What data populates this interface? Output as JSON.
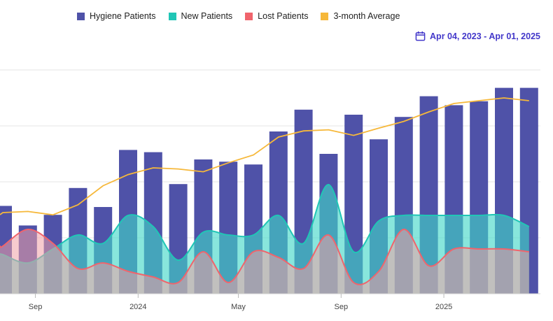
{
  "legend": [
    {
      "label": "Hygiene Patients",
      "color": "#4f52a8"
    },
    {
      "label": "New Patients",
      "color": "#20c6b6"
    },
    {
      "label": "Lost Patients",
      "color": "#f0646c"
    },
    {
      "label": "3-month Average",
      "color": "#f6b83a"
    }
  ],
  "date_range": {
    "label": "Apr 04, 2023 - Apr 01, 2025",
    "icon": "calendar-icon"
  },
  "chart_data": {
    "type": "bar",
    "title": "",
    "ylim": [
      0,
      400
    ],
    "gridlines": [
      100,
      200,
      300,
      400
    ],
    "categories": [
      "2023-07",
      "2023-08",
      "2023-09",
      "2023-10",
      "2023-11",
      "2023-12",
      "2024-01",
      "2024-02",
      "2024-03",
      "2024-04",
      "2024-05",
      "2024-06",
      "2024-07",
      "2024-08",
      "2024-09",
      "2024-10",
      "2024-11",
      "2024-12",
      "2025-01",
      "2025-02",
      "2025-03",
      "2025-04"
    ],
    "x_ticks": [
      {
        "label": "Sep",
        "index": 1.3
      },
      {
        "label": "2024",
        "index": 5.4
      },
      {
        "label": "May",
        "index": 9.4
      },
      {
        "label": "Sep",
        "index": 13.5
      },
      {
        "label": "2025",
        "index": 17.6
      }
    ],
    "series": [
      {
        "name": "Hygiene Patients",
        "type": "bar",
        "color": "#4f52a8",
        "values": [
          157,
          122,
          141,
          189,
          155,
          257,
          253,
          196,
          240,
          236,
          231,
          290,
          329,
          250,
          320,
          276,
          316,
          353,
          337,
          344,
          368,
          368
        ]
      },
      {
        "name": "New Patients",
        "type": "area",
        "color": "#20c6b6",
        "values": [
          70,
          55,
          80,
          105,
          90,
          140,
          120,
          60,
          110,
          105,
          105,
          140,
          90,
          195,
          75,
          130,
          140,
          140,
          140,
          140,
          140,
          120
        ]
      },
      {
        "name": "Lost Patients",
        "type": "area",
        "color": "#f0646c",
        "values": [
          85,
          115,
          90,
          45,
          55,
          40,
          30,
          20,
          75,
          20,
          75,
          65,
          45,
          105,
          20,
          40,
          115,
          50,
          80,
          80,
          80,
          75
        ]
      },
      {
        "name": "3-month Average",
        "type": "line",
        "color": "#f6b83a",
        "values": [
          145,
          147,
          141,
          159,
          193,
          213,
          225,
          223,
          218,
          234,
          248,
          280,
          291,
          293,
          283,
          296,
          308,
          325,
          340,
          345,
          350,
          345
        ]
      }
    ]
  }
}
